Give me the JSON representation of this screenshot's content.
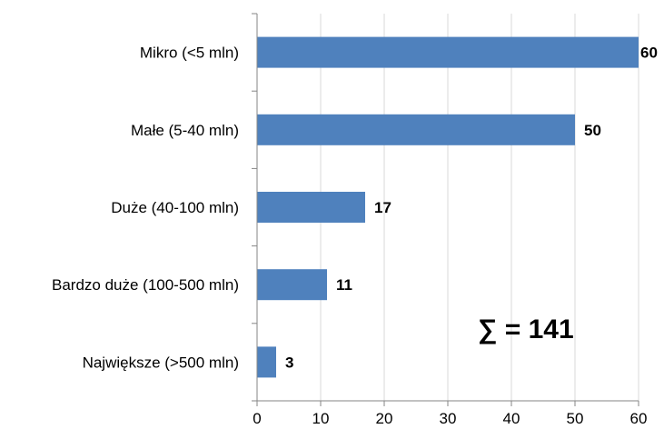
{
  "chart_data": {
    "type": "bar",
    "orientation": "horizontal",
    "categories": [
      "Mikro (<5 mln)",
      "Małe (5-40 mln)",
      "Duże (40-100 mln)",
      "Bardzo duże (100-500 mln)",
      "Największe (>500 mln)"
    ],
    "values": [
      60,
      50,
      17,
      11,
      3
    ],
    "xlim": [
      0,
      60
    ],
    "xticks": [
      0,
      10,
      20,
      30,
      40,
      50,
      60
    ],
    "grid": "vertical",
    "legend": "none",
    "annotation": "∑ = 141",
    "colors": {
      "bar": "#4f81bd",
      "grid": "#d9d9d9",
      "axis": "#868686"
    }
  }
}
